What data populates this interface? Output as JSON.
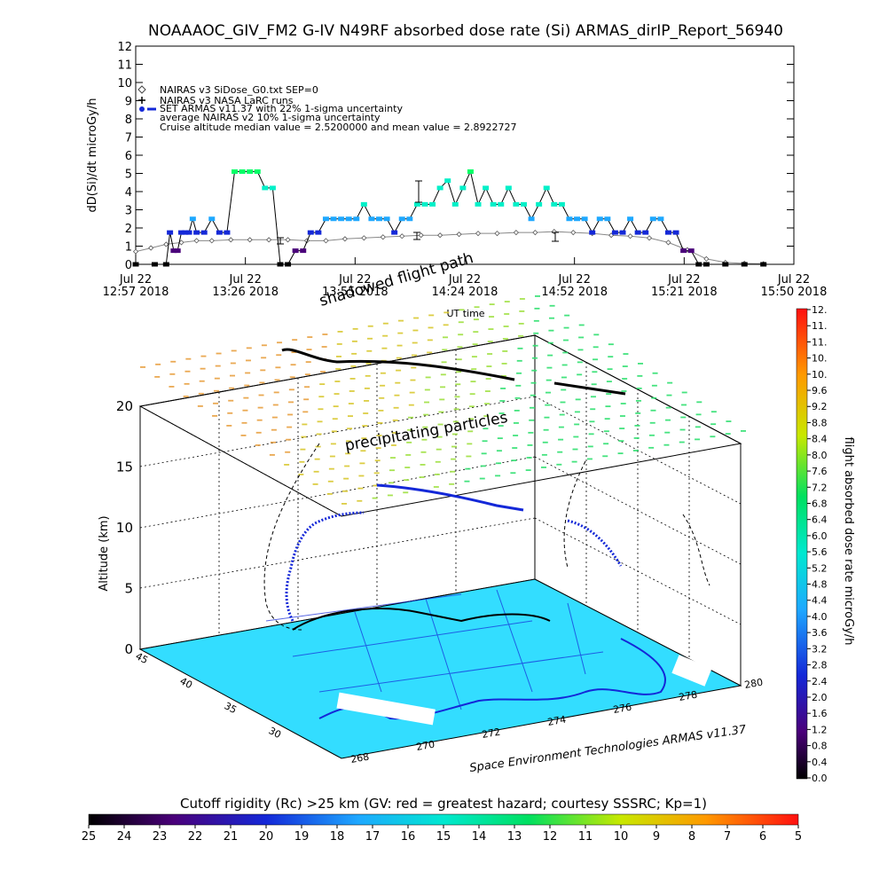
{
  "title": "NOAAAOC_GIV_FM2 G-IV    N49RF  absorbed dose rate (Si) ARMAS_dirIP_Report_56940",
  "time_series": {
    "ylabel": "dD(Si)/dt microGy/h",
    "xlabel": "UT time",
    "y_ticks": [
      "0",
      "1",
      "2",
      "3",
      "4",
      "5",
      "6",
      "7",
      "8",
      "9",
      "10",
      "11",
      "12"
    ],
    "x_ticks": [
      {
        "top": "Jul 22",
        "bottom": "12:57 2018"
      },
      {
        "top": "Jul 22",
        "bottom": "13:26 2018"
      },
      {
        "top": "Jul 22",
        "bottom": "13:55 2018"
      },
      {
        "top": "Jul 22",
        "bottom": "14:24 2018"
      },
      {
        "top": "Jul 22",
        "bottom": "14:52 2018"
      },
      {
        "top": "Jul 22",
        "bottom": "15:21 2018"
      },
      {
        "top": "Jul 22",
        "bottom": "15:50 2018"
      }
    ],
    "legend": [
      "NAIRAS v3 SiDose_G0.txt SEP=0",
      "NAIRAS v3 NASA LaRC runs",
      "SET ARMAS v11.37 with 22% 1-sigma uncertainty",
      "average NAIRAS v2 10% 1-sigma uncertainty",
      "Cruise altitude median value = 2.5200000 and mean value = 2.8922727"
    ]
  },
  "chart_data": [
    {
      "type": "line",
      "title": "NOAAAOC_GIV_FM2 G-IV    N49RF  absorbed dose rate (Si) ARMAS_dirIP_Report_56940",
      "xlabel": "UT time",
      "ylabel": "dD(Si)/dt microGy/h",
      "ylim": [
        0,
        12
      ],
      "x_unit": "minutes after 12:57 UT, Jul 22 2018",
      "xlim": [
        0,
        173
      ],
      "grid": false,
      "legend_position": "top-left",
      "series": [
        {
          "name": "NAIRAS v3 SiDose_G0.txt SEP=0",
          "x": [
            0,
            4,
            8,
            12,
            16,
            20,
            25,
            30,
            35,
            40,
            45,
            50,
            55,
            60,
            65,
            70,
            75,
            80,
            85,
            90,
            95,
            100,
            105,
            110,
            115,
            120,
            125,
            130,
            135,
            140,
            145,
            150,
            155,
            160,
            165
          ],
          "y": [
            0.7,
            0.9,
            1.1,
            1.2,
            1.3,
            1.3,
            1.35,
            1.35,
            1.35,
            1.35,
            1.3,
            1.3,
            1.4,
            1.45,
            1.5,
            1.55,
            1.6,
            1.6,
            1.65,
            1.7,
            1.7,
            1.75,
            1.75,
            1.8,
            1.75,
            1.7,
            1.6,
            1.55,
            1.45,
            1.2,
            0.8,
            0.3,
            0.1,
            0.05,
            0.03
          ]
        },
        {
          "name": "SET ARMAS v11.37 with 22% 1-sigma uncertainty",
          "x": [
            0,
            5,
            8,
            9,
            10,
            11,
            12,
            13,
            14,
            15,
            16,
            18,
            20,
            22,
            24,
            26,
            28,
            30,
            32,
            34,
            36,
            38,
            40,
            42,
            44,
            46,
            48,
            50,
            52,
            54,
            56,
            58,
            60,
            62,
            64,
            66,
            68,
            70,
            72,
            74,
            76,
            78,
            80,
            82,
            84,
            86,
            88,
            90,
            92,
            94,
            96,
            98,
            100,
            102,
            104,
            106,
            108,
            110,
            112,
            114,
            116,
            118,
            120,
            122,
            124,
            126,
            128,
            130,
            132,
            134,
            136,
            138,
            140,
            142,
            144,
            146,
            148,
            150,
            155,
            160,
            165
          ],
          "y": [
            0,
            0,
            0,
            1.75,
            0.75,
            0.75,
            1.75,
            1.75,
            1.75,
            2.5,
            1.75,
            1.75,
            2.5,
            1.75,
            1.75,
            5.1,
            5.1,
            5.1,
            5.1,
            4.2,
            4.2,
            0,
            0,
            0.75,
            0.75,
            1.75,
            1.75,
            2.5,
            2.5,
            2.5,
            2.5,
            2.5,
            3.3,
            2.5,
            2.5,
            2.5,
            1.75,
            2.5,
            2.5,
            3.3,
            3.3,
            3.3,
            4.2,
            4.6,
            3.3,
            4.2,
            5.1,
            3.3,
            4.2,
            3.3,
            3.3,
            4.2,
            3.3,
            3.3,
            2.5,
            3.3,
            4.2,
            3.3,
            3.3,
            2.5,
            2.5,
            2.5,
            1.75,
            2.5,
            2.5,
            1.75,
            1.75,
            2.5,
            1.75,
            1.75,
            2.5,
            2.5,
            1.75,
            1.75,
            0.75,
            0.75,
            0,
            0,
            0,
            0,
            0
          ]
        }
      ]
    },
    {
      "type": "scatter",
      "title": "shadowed flight path",
      "xlabel": "",
      "ylabel": "Altitude (km)",
      "z_ticks": [
        "0",
        "5",
        "10",
        "15",
        "20"
      ],
      "lat_ticks": [
        "30",
        "35",
        "40",
        "45"
      ],
      "lon_ticks": [
        "268",
        "270",
        "272",
        "274",
        "276",
        "278",
        "280"
      ],
      "annotation": "precipitating particles",
      "credit": "Space Environment Technologies ARMAS v11.37",
      "colorbar": {
        "label": "flight absorbed dose rate microGy/h",
        "ticks": [
          "0.0",
          "0.4",
          "0.8",
          "1.2",
          "1.6",
          "2.0",
          "2.4",
          "2.8",
          "3.2",
          "3.6",
          "4.0",
          "4.4",
          "4.8",
          "5.2",
          "5.6",
          "6.0",
          "6.4",
          "6.8",
          "7.2",
          "7.6",
          "8.0",
          "8.4",
          "8.8",
          "9.2",
          "9.6",
          "10.",
          "10.",
          "11.",
          "11.",
          "12."
        ],
        "min": 0,
        "max": 12
      }
    },
    {
      "type": "heatmap",
      "title": "Cutoff rigidity (Rc) >25 km (GV: red = greatest hazard; courtesy SSSRC; Kp=1)",
      "ticks": [
        "25",
        "24",
        "23",
        "22",
        "21",
        "20",
        "19",
        "18",
        "17",
        "16",
        "15",
        "14",
        "13",
        "12",
        "11",
        "10",
        "9",
        "8",
        "7",
        "6",
        "5"
      ]
    }
  ],
  "colors": {
    "arms_low": "#1428d8",
    "arms_mid": "#1ea8ff",
    "arms_high": "#00f0c8",
    "arms_peak": "#00ff66",
    "ground": "#33ddff",
    "nairas": "#888888"
  }
}
